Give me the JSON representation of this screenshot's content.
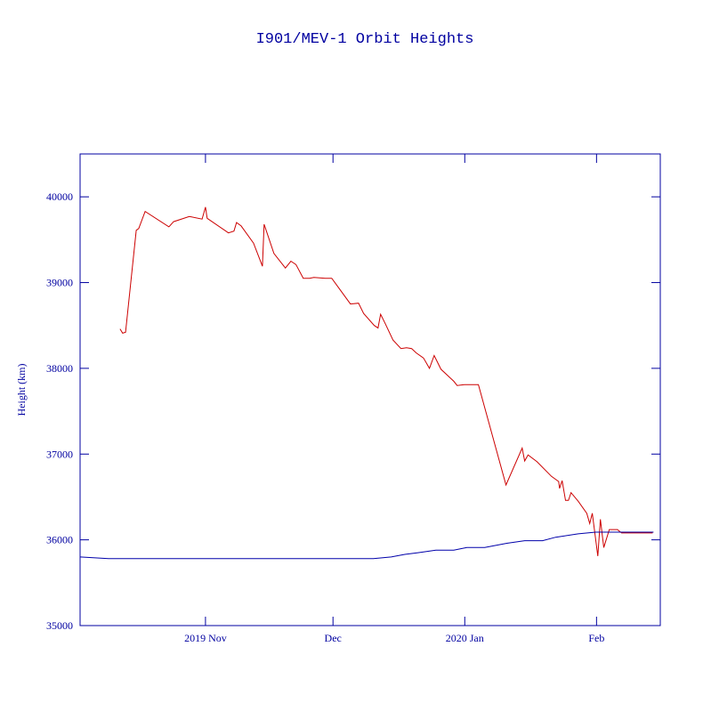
{
  "chart_data": {
    "type": "line",
    "title": "I901/MEV-1 Orbit Heights",
    "y_label": "Height (km)",
    "xlim": [
      -29.5,
      107
    ],
    "xticks": [
      {
        "value": 0,
        "label": "2019 Nov"
      },
      {
        "value": 30,
        "label": "Dec"
      },
      {
        "value": 61,
        "label": "2020 Jan"
      },
      {
        "value": 92,
        "label": "Feb"
      }
    ],
    "ylim": [
      35000,
      40500
    ],
    "yticks": [
      35000,
      36000,
      37000,
      38000,
      39000,
      40000
    ],
    "axis_color": "#0000a0",
    "series": [
      {
        "color": "#cc0000",
        "x": [
          -20.1,
          -19.5,
          -18.8,
          -16.3,
          -15.7,
          -14.2,
          -8.6,
          -7.5,
          -3.8,
          -0.8,
          0,
          0.4,
          5.4,
          6.7,
          7.3,
          8.4,
          11.3,
          13.4,
          13.8,
          16.1,
          18.8,
          20.1,
          21.3,
          23.0,
          24.5,
          25.5,
          28.2,
          29.7,
          34.1,
          36.0,
          37.2,
          39.7,
          40.6,
          41.2,
          42.3,
          44.1,
          46.0,
          47.3,
          48.5,
          49.6,
          51.3,
          52.7,
          53.8,
          55.4,
          58.4,
          59.2,
          60.9,
          64.2,
          70.7,
          74.5,
          75.1,
          75.9,
          78.0,
          81.4,
          83.1,
          83.3,
          83.9,
          84.7,
          85.4,
          86.0,
          87.7,
          89.7,
          90.4,
          91.0,
          92.3,
          92.9,
          93.7,
          95.0,
          96.9,
          97.9,
          105.2
        ],
        "values": [
          38460,
          38410,
          38420,
          39610,
          39630,
          39830,
          39650,
          39710,
          39770,
          39740,
          39880,
          39750,
          39580,
          39600,
          39700,
          39660,
          39460,
          39190,
          39680,
          39340,
          39170,
          39250,
          39210,
          39050,
          39050,
          39060,
          39050,
          39050,
          38750,
          38760,
          38640,
          38500,
          38470,
          38630,
          38520,
          38330,
          38230,
          38240,
          38230,
          38180,
          38120,
          38000,
          38150,
          37990,
          37850,
          37800,
          37810,
          37810,
          36640,
          37070,
          36920,
          36990,
          36910,
          36740,
          36680,
          36600,
          36690,
          36460,
          36460,
          36550,
          36450,
          36310,
          36190,
          36310,
          35810,
          36240,
          35910,
          36120,
          36120,
          36080,
          36080
        ]
      },
      {
        "color": "#0000aa",
        "x": [
          -29.5,
          -22.8,
          -17.0,
          10.3,
          39.5,
          43.7,
          46.9,
          50.0,
          54.2,
          58.4,
          61.5,
          65.7,
          70.9,
          75.1,
          79.3,
          82.4,
          87.7,
          91.8,
          98.1,
          105.4
        ],
        "values": [
          35800,
          35780,
          35780,
          35780,
          35780,
          35800,
          35830,
          35850,
          35880,
          35880,
          35910,
          35910,
          35960,
          35990,
          35990,
          36030,
          36070,
          36090,
          36090,
          36090
        ]
      }
    ]
  }
}
